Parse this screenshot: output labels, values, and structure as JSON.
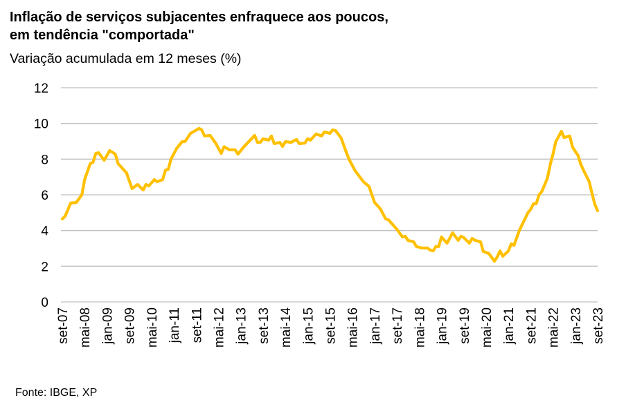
{
  "title_line1": "Inflação de serviços subjacentes enfraquece aos poucos,",
  "title_line2": "em tendência \"comportada\"",
  "subtitle": "Variação acumulada  em 12 meses (%)",
  "source": "Fonte: IBGE, XP",
  "chart_data": {
    "type": "line",
    "title": "Inflação de serviços subjacentes enfraquece aos poucos, em tendência \"comportada\"",
    "subtitle": "Variação acumulada  em 12 meses (%)",
    "xlabel": "",
    "ylabel": "",
    "ylim": [
      0,
      12
    ],
    "xlim": [
      "2007-09",
      "2023-09"
    ],
    "yticks": [
      "0",
      "2",
      "4",
      "6",
      "8",
      "10",
      "12"
    ],
    "xticks": [
      {
        "label": "set-07",
        "date": "2007-09"
      },
      {
        "label": "mai-08",
        "date": "2008-05"
      },
      {
        "label": "jan-09",
        "date": "2009-01"
      },
      {
        "label": "set-09",
        "date": "2009-09"
      },
      {
        "label": "mai-10",
        "date": "2010-05"
      },
      {
        "label": "jan-11",
        "date": "2011-01"
      },
      {
        "label": "set-11",
        "date": "2011-09"
      },
      {
        "label": "mai-12",
        "date": "2012-05"
      },
      {
        "label": "jan-13",
        "date": "2013-01"
      },
      {
        "label": "set-13",
        "date": "2013-09"
      },
      {
        "label": "mai-14",
        "date": "2014-05"
      },
      {
        "label": "jan-15",
        "date": "2015-01"
      },
      {
        "label": "set-15",
        "date": "2015-09"
      },
      {
        "label": "mai-16",
        "date": "2016-05"
      },
      {
        "label": "jan-17",
        "date": "2017-01"
      },
      {
        "label": "set-17",
        "date": "2017-09"
      },
      {
        "label": "mai-18",
        "date": "2018-05"
      },
      {
        "label": "jan-19",
        "date": "2019-01"
      },
      {
        "label": "set-19",
        "date": "2019-09"
      },
      {
        "label": "mai-20",
        "date": "2020-05"
      },
      {
        "label": "jan-21",
        "date": "2021-01"
      },
      {
        "label": "set-21",
        "date": "2021-09"
      },
      {
        "label": "mai-22",
        "date": "2022-05"
      },
      {
        "label": "jan-23",
        "date": "2023-01"
      },
      {
        "label": "set-23",
        "date": "2023-09"
      }
    ],
    "grid": true,
    "legend": "none",
    "colors": {
      "line": "#FFC000",
      "grid": "#BFBFBF"
    },
    "series": [
      {
        "points": [
          [
            "2007-09",
            4.65
          ],
          [
            "2007-10",
            4.8
          ],
          [
            "2007-12",
            5.54
          ],
          [
            "2008-02",
            5.57
          ],
          [
            "2008-04",
            6.0
          ],
          [
            "2008-05",
            6.85
          ],
          [
            "2008-07",
            7.75
          ],
          [
            "2008-08",
            7.82
          ],
          [
            "2008-09",
            8.32
          ],
          [
            "2008-10",
            8.36
          ],
          [
            "2008-12",
            7.94
          ],
          [
            "2009-02",
            8.48
          ],
          [
            "2009-04",
            8.28
          ],
          [
            "2009-05",
            7.75
          ],
          [
            "2009-08",
            7.24
          ],
          [
            "2009-10",
            6.35
          ],
          [
            "2009-12",
            6.58
          ],
          [
            "2010-02",
            6.27
          ],
          [
            "2010-03",
            6.58
          ],
          [
            "2010-04",
            6.5
          ],
          [
            "2010-06",
            6.85
          ],
          [
            "2010-07",
            6.73
          ],
          [
            "2010-09",
            6.85
          ],
          [
            "2010-10",
            7.39
          ],
          [
            "2010-11",
            7.43
          ],
          [
            "2010-12",
            8.0
          ],
          [
            "2011-02",
            8.6
          ],
          [
            "2011-04",
            8.98
          ],
          [
            "2011-05",
            8.98
          ],
          [
            "2011-07",
            9.44
          ],
          [
            "2011-10",
            9.72
          ],
          [
            "2011-11",
            9.64
          ],
          [
            "2011-12",
            9.3
          ],
          [
            "2012-02",
            9.33
          ],
          [
            "2012-04",
            8.9
          ],
          [
            "2012-06",
            8.32
          ],
          [
            "2012-07",
            8.7
          ],
          [
            "2012-09",
            8.52
          ],
          [
            "2012-11",
            8.52
          ],
          [
            "2012-12",
            8.28
          ],
          [
            "2013-02",
            8.67
          ],
          [
            "2013-06",
            9.33
          ],
          [
            "2013-07",
            8.94
          ],
          [
            "2013-08",
            8.94
          ],
          [
            "2013-09",
            9.14
          ],
          [
            "2013-11",
            9.06
          ],
          [
            "2013-12",
            9.3
          ],
          [
            "2014-01",
            8.87
          ],
          [
            "2014-03",
            8.94
          ],
          [
            "2014-04",
            8.71
          ],
          [
            "2014-05",
            8.98
          ],
          [
            "2014-07",
            8.94
          ],
          [
            "2014-09",
            9.1
          ],
          [
            "2014-10",
            8.87
          ],
          [
            "2014-12",
            8.9
          ],
          [
            "2015-01",
            9.14
          ],
          [
            "2015-02",
            9.06
          ],
          [
            "2015-04",
            9.41
          ],
          [
            "2015-06",
            9.3
          ],
          [
            "2015-07",
            9.52
          ],
          [
            "2015-09",
            9.45
          ],
          [
            "2015-10",
            9.64
          ],
          [
            "2015-11",
            9.6
          ],
          [
            "2016-01",
            9.18
          ],
          [
            "2016-03",
            8.32
          ],
          [
            "2016-04",
            7.94
          ],
          [
            "2016-06",
            7.36
          ],
          [
            "2016-09",
            6.73
          ],
          [
            "2016-11",
            6.47
          ],
          [
            "2017-01",
            5.57
          ],
          [
            "2017-03",
            5.23
          ],
          [
            "2017-05",
            4.65
          ],
          [
            "2017-06",
            4.6
          ],
          [
            "2017-09",
            4.07
          ],
          [
            "2017-11",
            3.64
          ],
          [
            "2017-12",
            3.68
          ],
          [
            "2018-01",
            3.45
          ],
          [
            "2018-03",
            3.37
          ],
          [
            "2018-04",
            3.1
          ],
          [
            "2018-06",
            3.02
          ],
          [
            "2018-08",
            3.02
          ],
          [
            "2018-09",
            2.9
          ],
          [
            "2018-10",
            2.86
          ],
          [
            "2018-11",
            3.1
          ],
          [
            "2018-12",
            3.1
          ],
          [
            "2019-01",
            3.64
          ],
          [
            "2019-03",
            3.29
          ],
          [
            "2019-05",
            3.87
          ],
          [
            "2019-07",
            3.45
          ],
          [
            "2019-08",
            3.68
          ],
          [
            "2019-09",
            3.6
          ],
          [
            "2019-11",
            3.29
          ],
          [
            "2019-12",
            3.56
          ],
          [
            "2020-01",
            3.45
          ],
          [
            "2020-03",
            3.37
          ],
          [
            "2020-04",
            2.83
          ],
          [
            "2020-06",
            2.71
          ],
          [
            "2020-08",
            2.28
          ],
          [
            "2020-09",
            2.52
          ],
          [
            "2020-10",
            2.86
          ],
          [
            "2020-11",
            2.56
          ],
          [
            "2021-01",
            2.86
          ],
          [
            "2021-02",
            3.25
          ],
          [
            "2021-03",
            3.17
          ],
          [
            "2021-05",
            4.03
          ],
          [
            "2021-08",
            4.99
          ],
          [
            "2021-09",
            5.19
          ],
          [
            "2021-10",
            5.5
          ],
          [
            "2021-11",
            5.5
          ],
          [
            "2021-12",
            6.0
          ],
          [
            "2022-01",
            6.19
          ],
          [
            "2022-03",
            6.93
          ],
          [
            "2022-04",
            7.7
          ],
          [
            "2022-05",
            8.28
          ],
          [
            "2022-06",
            8.98
          ],
          [
            "2022-07",
            9.25
          ],
          [
            "2022-08",
            9.56
          ],
          [
            "2022-09",
            9.21
          ],
          [
            "2022-11",
            9.3
          ],
          [
            "2022-12",
            8.67
          ],
          [
            "2023-02",
            8.2
          ],
          [
            "2023-03",
            7.7
          ],
          [
            "2023-04",
            7.36
          ],
          [
            "2023-06",
            6.73
          ],
          [
            "2023-07",
            6.08
          ],
          [
            "2023-08",
            5.46
          ],
          [
            "2023-09",
            5.11
          ]
        ]
      }
    ]
  }
}
